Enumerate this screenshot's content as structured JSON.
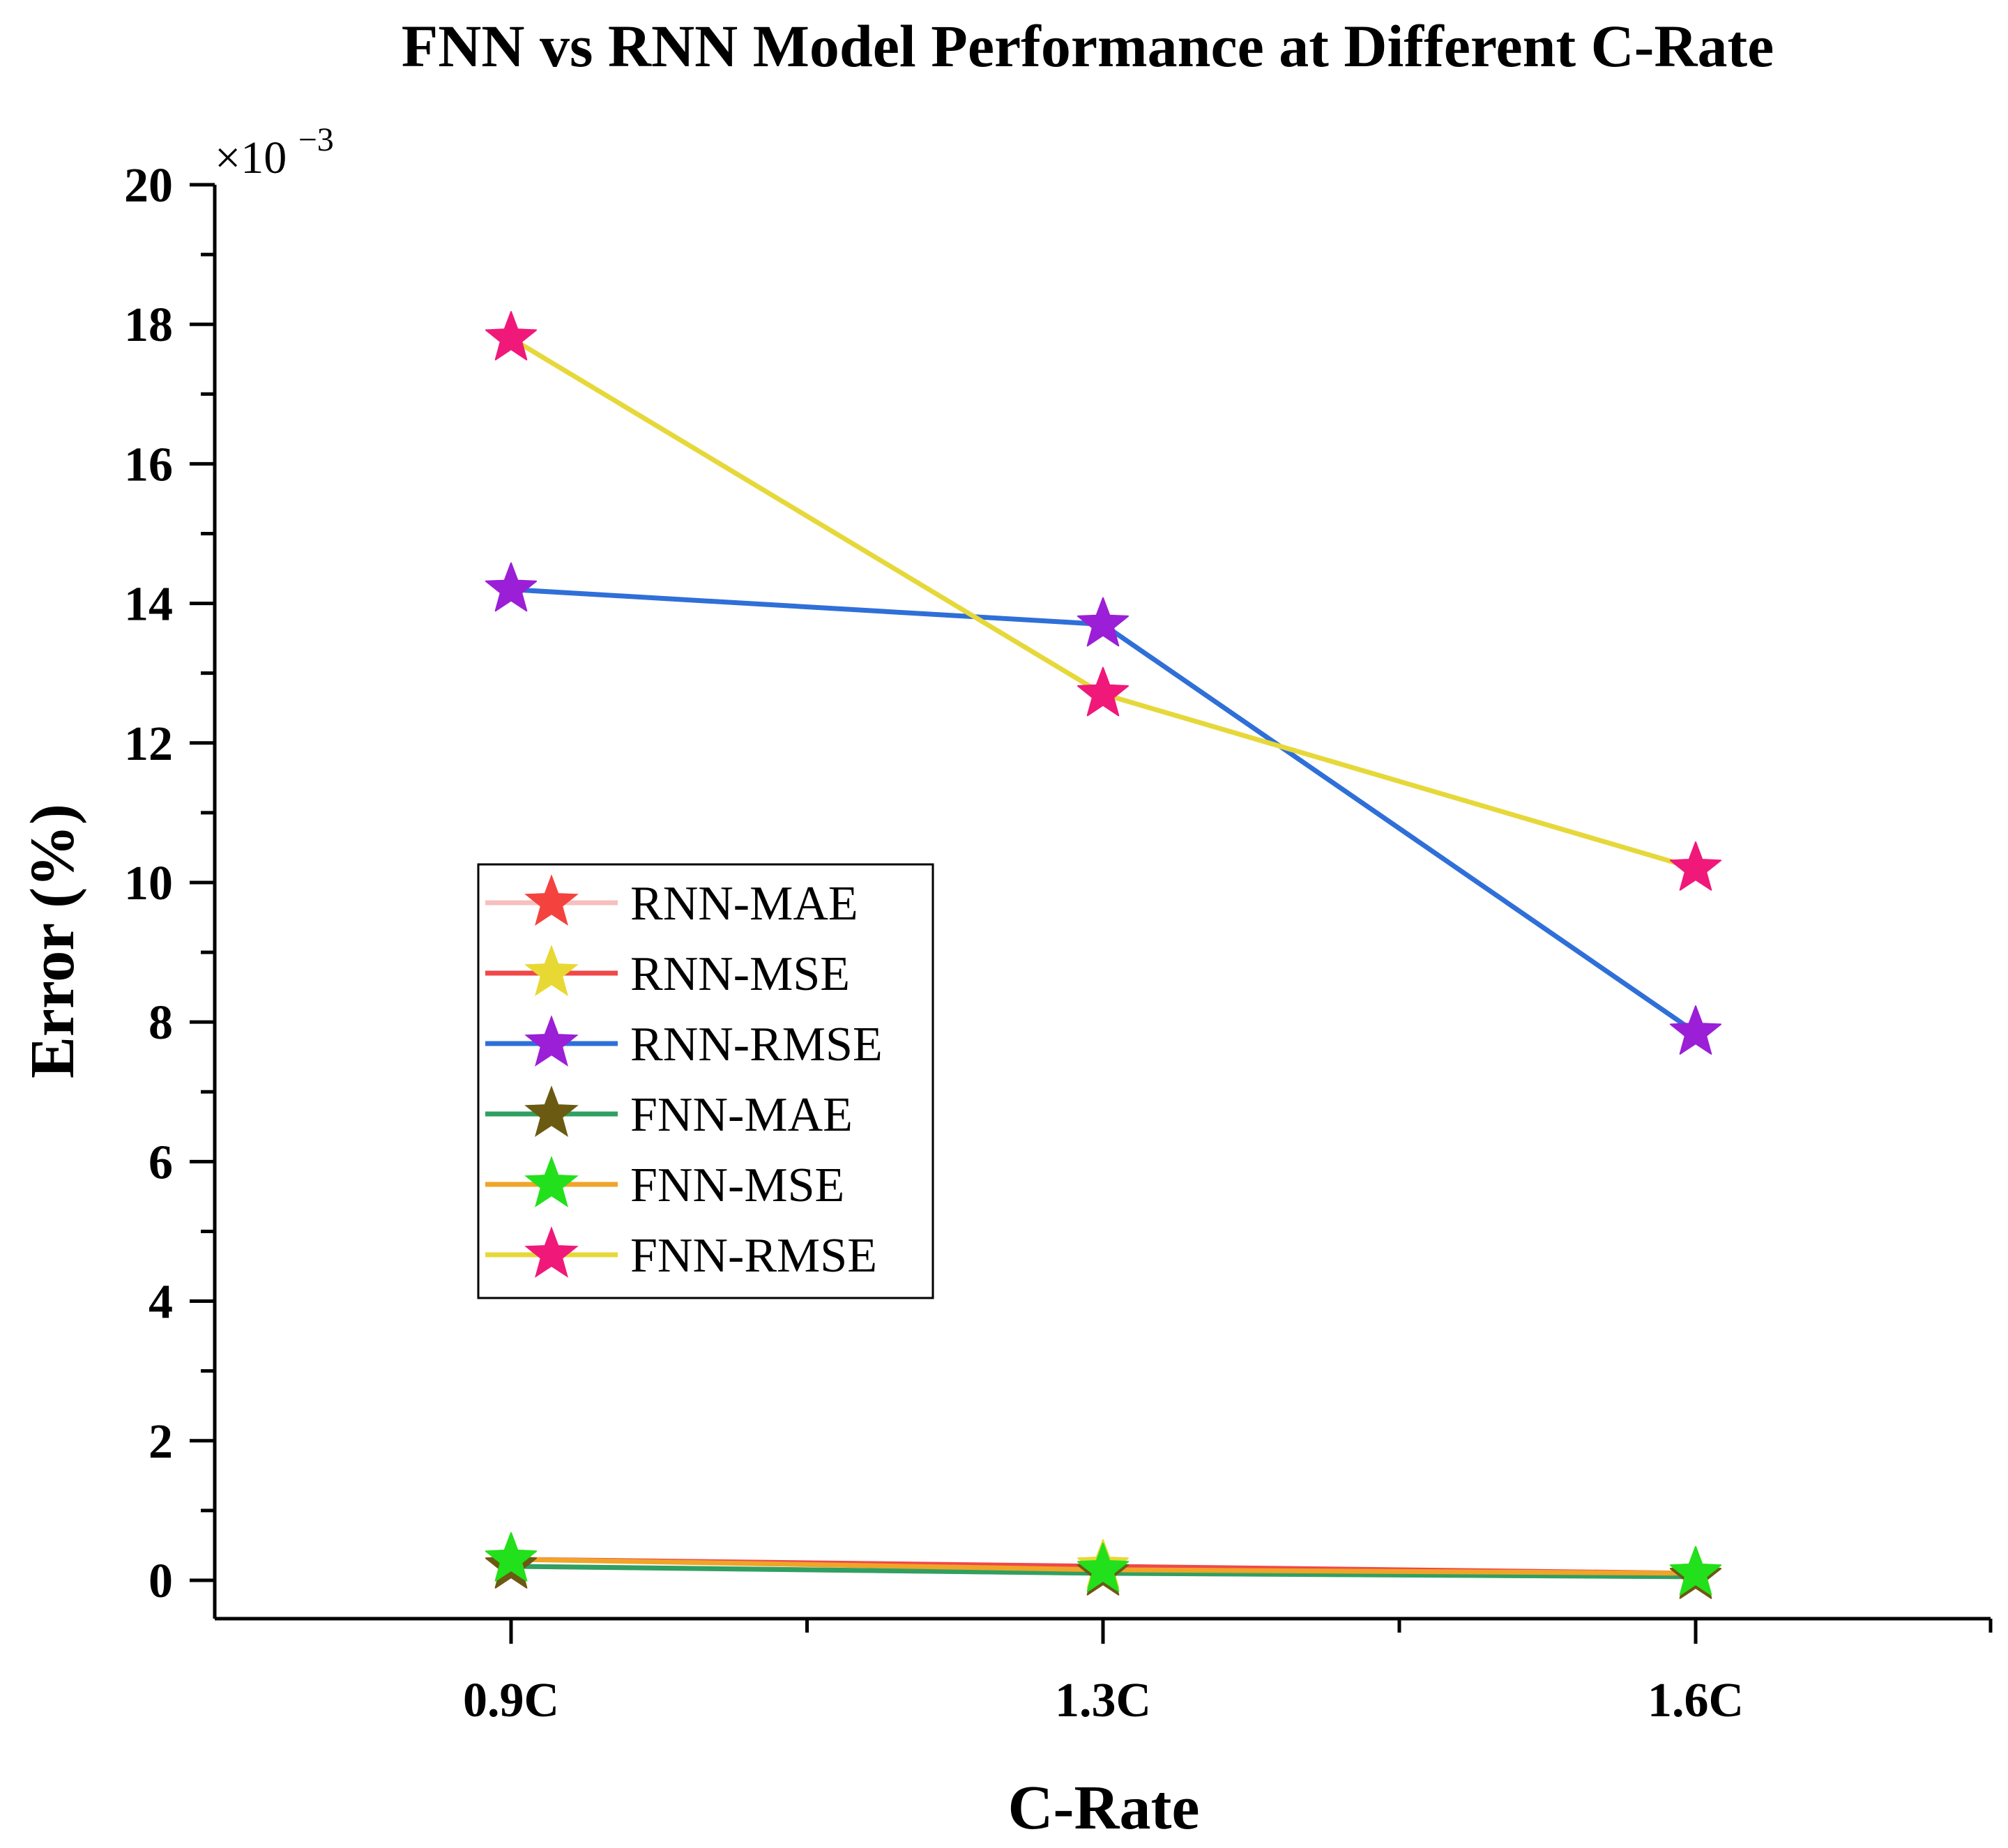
{
  "chart_data": {
    "type": "line",
    "title": "FNN vs RNN Model Performance at Different C-Rate",
    "xlabel": "C-Rate",
    "ylabel": "Error (%)",
    "y_scale_label": "×10",
    "y_scale_exponent": "−3",
    "categories": [
      "0.9C",
      "1.3C",
      "1.6C"
    ],
    "ylim": [
      -0.55,
      20
    ],
    "yticks": [
      "0",
      "2",
      "4",
      "6",
      "8",
      "10",
      "12",
      "14",
      "16",
      "18",
      "20"
    ],
    "legend_position": "center-left",
    "series": [
      {
        "name": "RNN-MAE",
        "values": [
          0.2,
          0.1,
          0.05
        ],
        "line_color": "#f7c0c0",
        "marker_color": "#f4433f"
      },
      {
        "name": "RNN-MSE",
        "values": [
          0.3,
          0.2,
          0.1
        ],
        "line_color": "#f04848",
        "marker_color": "#e8d834"
      },
      {
        "name": "RNN-RMSE",
        "values": [
          14.2,
          13.7,
          7.85
        ],
        "line_color": "#2f6fd8",
        "marker_color": "#9b1fd6"
      },
      {
        "name": "FNN-MAE",
        "values": [
          0.2,
          0.1,
          0.05
        ],
        "line_color": "#2fa062",
        "marker_color": "#6b5a12"
      },
      {
        "name": "FNN-MSE",
        "values": [
          0.3,
          0.15,
          0.1
        ],
        "line_color": "#f0a428",
        "marker_color": "#22e01c"
      },
      {
        "name": "FNN-RMSE",
        "values": [
          17.8,
          12.7,
          10.2
        ],
        "line_color": "#e6d83a",
        "marker_color": "#f0197a"
      }
    ]
  }
}
